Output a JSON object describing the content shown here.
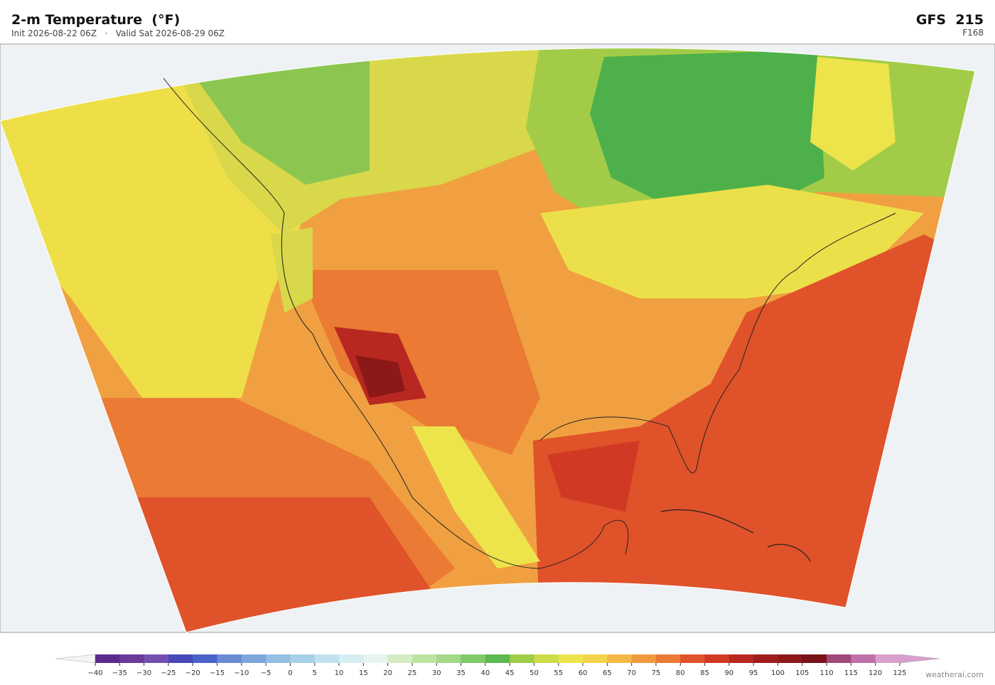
{
  "header": {
    "title": "2-m Temperature  (°F)",
    "subtitle": "Init 2026-08-22 06Z   ·   Valid Sat 2026-08-29 06Z",
    "model": "GFS  215",
    "forecast_hour": "F168"
  },
  "colorbar": {
    "ticks": [
      {
        "value": -40,
        "label": "−40"
      },
      {
        "value": -35,
        "label": "−35"
      },
      {
        "value": -30,
        "label": "−30"
      },
      {
        "value": -25,
        "label": "−25"
      },
      {
        "value": -20,
        "label": "−20"
      },
      {
        "value": -15,
        "label": "−15"
      },
      {
        "value": -10,
        "label": "−10"
      },
      {
        "value": -5,
        "label": "−5"
      },
      0,
      5,
      10,
      15,
      20,
      25,
      30,
      35,
      40,
      45,
      50,
      55,
      60,
      65,
      70,
      75,
      80,
      85,
      90,
      95,
      100,
      105,
      110,
      115,
      120,
      125
    ],
    "colors": [
      "#5b2a8c",
      "#6a3a9a",
      "#7350b0",
      "#4848b8",
      "#4a62c8",
      "#6a8ad4",
      "#7ea6dc",
      "#94c0e4",
      "#a8d0ea",
      "#c0e2f0",
      "#d6eef2",
      "#e6f4ee",
      "#d4ecc4",
      "#bce4a0",
      "#a2d888",
      "#80c868",
      "#5cb850",
      "#a0cc48",
      "#ccdc48",
      "#ece44a",
      "#f4d44a",
      "#f4b846",
      "#f09a3e",
      "#ea7a34",
      "#e0522a",
      "#d03a24",
      "#b82820",
      "#a01c1c",
      "#8c1818",
      "#7a1418",
      "#a04878",
      "#c070a8",
      "#d8a0cc"
    ]
  },
  "credit": "weatherai.com"
}
